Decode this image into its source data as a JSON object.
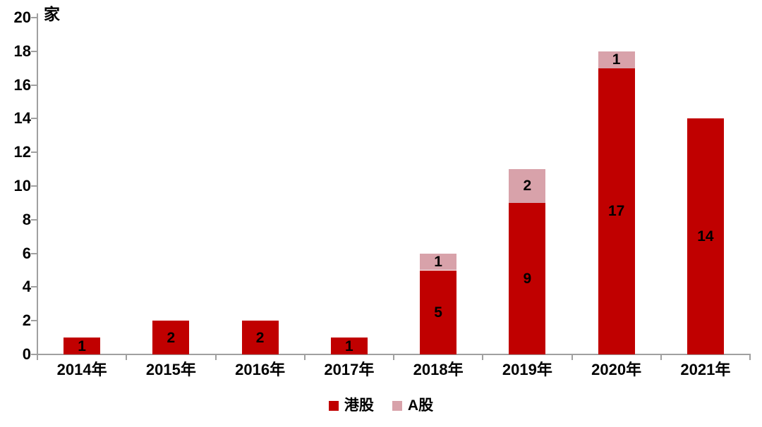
{
  "chart_data": {
    "type": "bar",
    "stacked": true,
    "title": "",
    "unit_label": "家",
    "categories": [
      "2014年",
      "2015年",
      "2016年",
      "2017年",
      "2018年",
      "2019年",
      "2020年",
      "2021年"
    ],
    "series": [
      {
        "name": "港股",
        "color": "#c00000",
        "values": [
          1,
          2,
          2,
          1,
          5,
          9,
          17,
          14
        ]
      },
      {
        "name": "A股",
        "color": "#d8a2aa",
        "values": [
          0,
          0,
          0,
          0,
          1,
          2,
          1,
          0
        ]
      }
    ],
    "totals": [
      1,
      2,
      2,
      1,
      6,
      11,
      18,
      14
    ],
    "ylim": [
      0,
      20
    ],
    "ytick_step": 2,
    "yticks": [
      "0",
      "2",
      "4",
      "6",
      "8",
      "10",
      "12",
      "14",
      "16",
      "18",
      "20"
    ],
    "grid": false,
    "legend_position": "bottom",
    "data_labels_shown": true,
    "colors": {
      "bar_hk": "#c00000",
      "bar_a": "#d8a2aa",
      "axis": "#a0a0a0",
      "text": "#000000",
      "background": "#ffffff"
    }
  }
}
